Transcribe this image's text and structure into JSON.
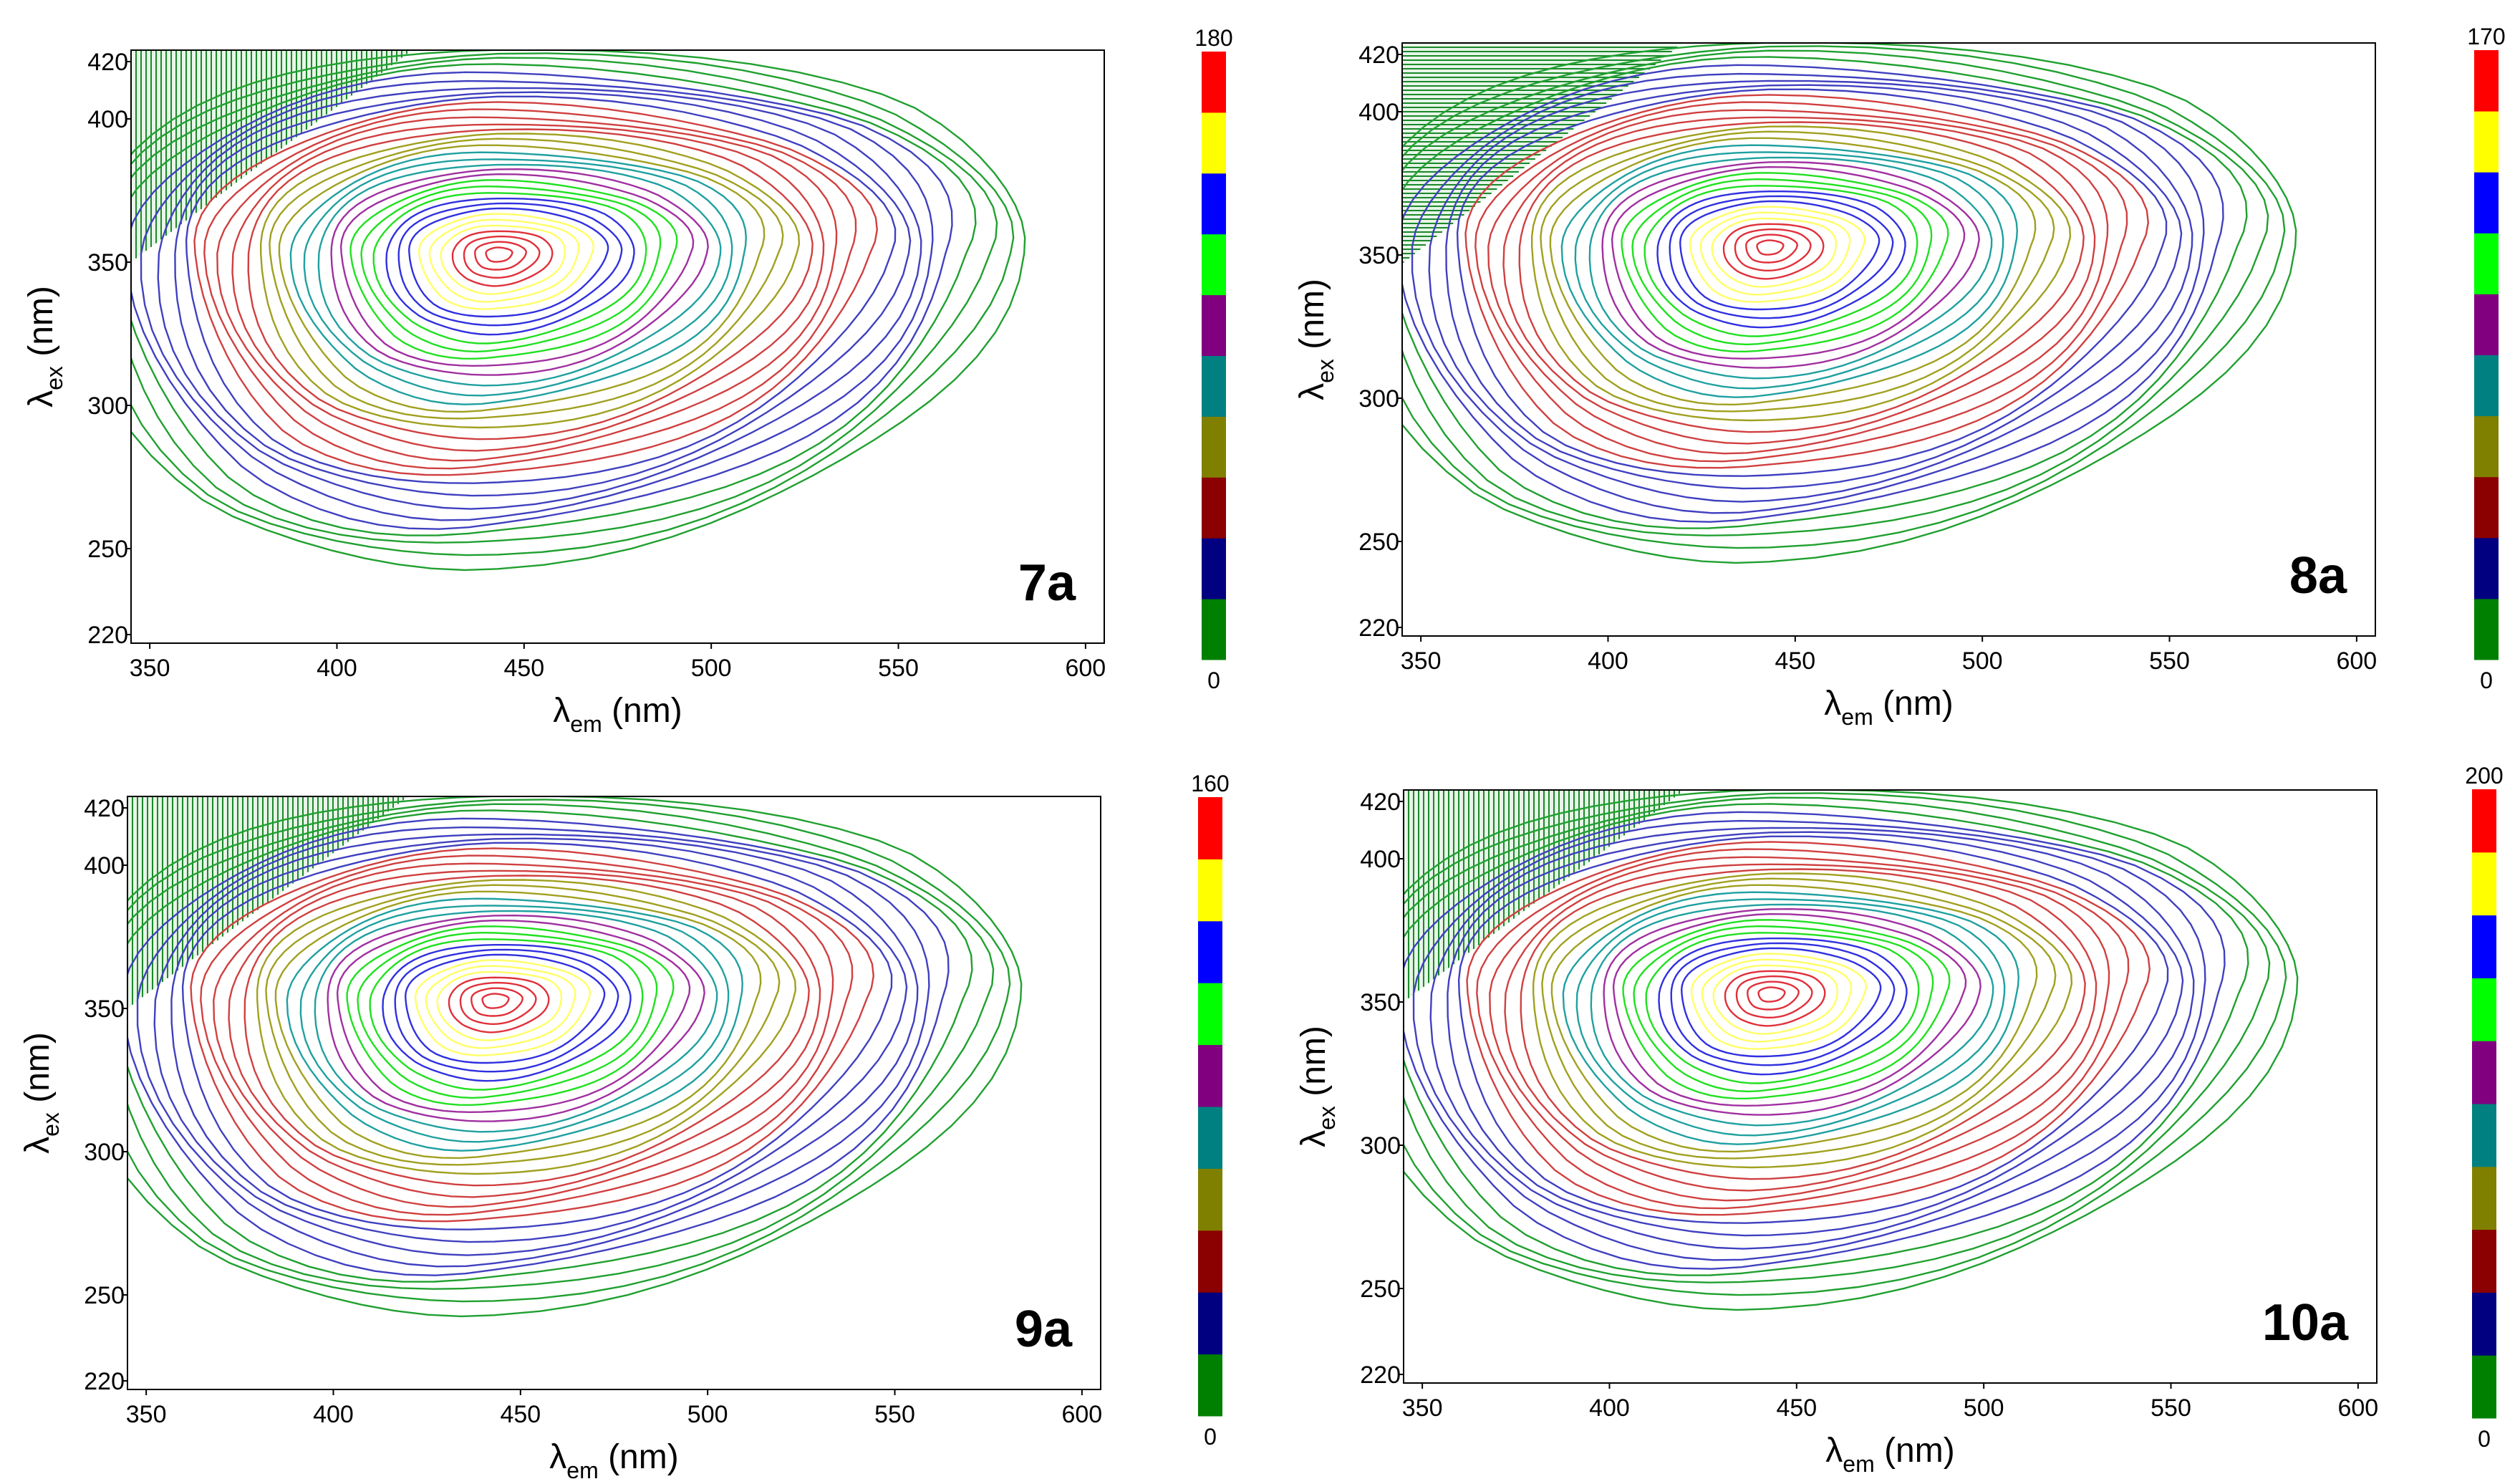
{
  "chart_data": [
    {
      "type": "contour",
      "panel_label": "7a",
      "xlabel": {
        "main": "λ",
        "sub": "em",
        "unit": " (nm)"
      },
      "ylabel": {
        "main": "λ",
        "sub": "ex",
        "unit": " (nm)"
      },
      "xlim": [
        345,
        605
      ],
      "ylim": [
        217,
        424
      ],
      "x_ticks": [
        "350",
        "400",
        "450",
        "500",
        "550",
        "600"
      ],
      "x_tick_values": [
        350,
        400,
        450,
        500,
        550,
        600
      ],
      "y_ticks": [
        "220",
        "250",
        "300",
        "350",
        "400",
        "420"
      ],
      "y_tick_values": [
        220,
        250,
        300,
        350,
        400,
        420
      ],
      "colorbar": {
        "min": "0",
        "max": "180",
        "colors": [
          "#008000",
          "#000080",
          "#8b0000",
          "#808000",
          "#008080",
          "#800080",
          "#00ff00",
          "#0000ff",
          "#ffff00",
          "#ff0000"
        ]
      },
      "peak": {
        "em": 443,
        "ex": 353
      },
      "scatter_band_edge": {
        "ex_at_em345": 350,
        "em_at_ex424": 420
      }
    },
    {
      "type": "contour",
      "panel_label": "8a",
      "xlabel": {
        "main": "λ",
        "sub": "em",
        "unit": " (nm)"
      },
      "ylabel": {
        "main": "λ",
        "sub": "ex",
        "unit": " (nm)"
      },
      "xlim": [
        345,
        605
      ],
      "ylim": [
        217,
        424
      ],
      "x_ticks": [
        "350",
        "400",
        "450",
        "500",
        "550",
        "600"
      ],
      "x_tick_values": [
        350,
        400,
        450,
        500,
        550,
        600
      ],
      "y_ticks": [
        "220",
        "250",
        "300",
        "350",
        "400",
        "420"
      ],
      "y_tick_values": [
        220,
        250,
        300,
        350,
        400,
        420
      ],
      "colorbar": {
        "min": "0",
        "max": "170",
        "colors": [
          "#008000",
          "#000080",
          "#8b0000",
          "#808000",
          "#008080",
          "#800080",
          "#00ff00",
          "#0000ff",
          "#ffff00",
          "#ff0000"
        ]
      },
      "peak": {
        "em": 443,
        "ex": 353
      },
      "scatter_band_edge": {
        "ex_at_em345": 347,
        "em_at_ex424": 420
      }
    },
    {
      "type": "contour",
      "panel_label": "9a",
      "xlabel": {
        "main": "λ",
        "sub": "em",
        "unit": " (nm)"
      },
      "ylabel": {
        "main": "λ",
        "sub": "ex",
        "unit": " (nm)"
      },
      "xlim": [
        345,
        605
      ],
      "ylim": [
        217,
        424
      ],
      "x_ticks": [
        "350",
        "400",
        "450",
        "500",
        "550",
        "600"
      ],
      "x_tick_values": [
        350,
        400,
        450,
        500,
        550,
        600
      ],
      "y_ticks": [
        "220",
        "250",
        "300",
        "350",
        "400",
        "420"
      ],
      "y_tick_values": [
        220,
        250,
        300,
        350,
        400,
        420
      ],
      "colorbar": {
        "min": "0",
        "max": "160",
        "colors": [
          "#008000",
          "#000080",
          "#8b0000",
          "#808000",
          "#008080",
          "#800080",
          "#00ff00",
          "#0000ff",
          "#ffff00",
          "#ff0000"
        ]
      },
      "peak": {
        "em": 443,
        "ex": 353
      },
      "scatter_band_edge": {
        "ex_at_em345": 350,
        "em_at_ex424": 420
      }
    },
    {
      "type": "contour",
      "panel_label": "10a",
      "xlabel": {
        "main": "λ",
        "sub": "em",
        "unit": " (nm)"
      },
      "ylabel": {
        "main": "λ",
        "sub": "ex",
        "unit": " (nm)"
      },
      "xlim": [
        345,
        605
      ],
      "ylim": [
        217,
        424
      ],
      "x_ticks": [
        "350",
        "400",
        "450",
        "500",
        "550",
        "600"
      ],
      "x_tick_values": [
        350,
        400,
        450,
        500,
        550,
        600
      ],
      "y_ticks": [
        "220",
        "250",
        "300",
        "350",
        "400",
        "420"
      ],
      "y_tick_values": [
        220,
        250,
        300,
        350,
        400,
        420
      ],
      "colorbar": {
        "min": "0",
        "max": "200",
        "colors": [
          "#008000",
          "#000080",
          "#8b0000",
          "#808000",
          "#008080",
          "#800080",
          "#00ff00",
          "#0000ff",
          "#ffff00",
          "#ff0000"
        ]
      },
      "peak": {
        "em": 443,
        "ex": 353
      },
      "scatter_band_edge": {
        "ex_at_em345": 350,
        "em_at_ex424": 420
      }
    }
  ]
}
